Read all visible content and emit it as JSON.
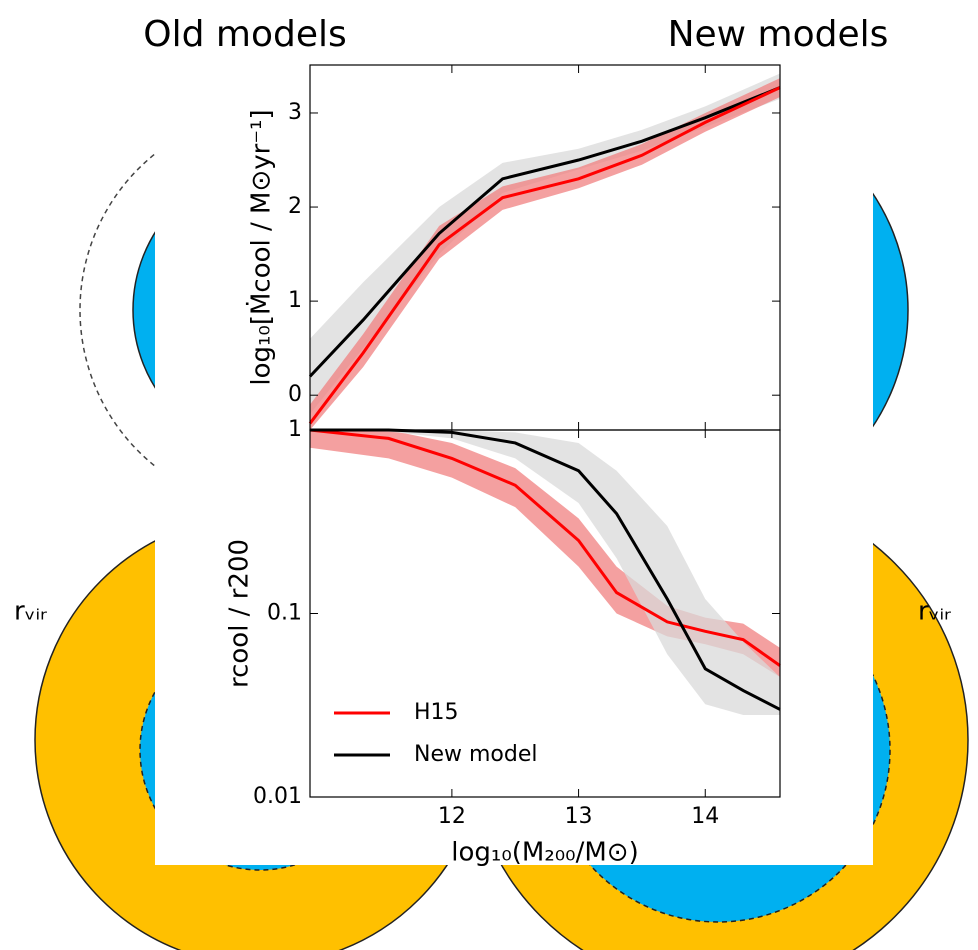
{
  "header": {
    "left": "Old models",
    "right": "New models"
  },
  "diagram": {
    "left_label": "rᵥᵢᵣ",
    "right_label": "rᵥᵢᵣ"
  },
  "chart_data": [
    {
      "type": "line",
      "y_label": "log₁₀[Ṁcool / M⊙yr⁻¹]",
      "x": [
        10.88,
        11.3,
        11.9,
        12.4,
        13,
        13.5,
        14,
        14.59
      ],
      "xlim": [
        10.88,
        14.59
      ],
      "xticks": [
        12,
        13,
        14
      ],
      "ylim": [
        -0.37,
        3.51
      ],
      "yticks": [
        0,
        1,
        2,
        3
      ],
      "series": [
        {
          "color": "#000000",
          "band_color": "#d9d9d9",
          "values": [
            0.2,
            0.8,
            1.72,
            2.3,
            2.5,
            2.7,
            2.95,
            3.27
          ],
          "lower": [
            -0.2,
            0.5,
            1.5,
            2.15,
            2.4,
            2.6,
            2.85,
            3.15
          ],
          "upper": [
            0.6,
            1.2,
            2.0,
            2.47,
            2.62,
            2.82,
            3.07,
            3.42
          ]
        },
        {
          "color": "#ff0000",
          "band_color": "#f08080",
          "values": [
            -0.3,
            0.45,
            1.6,
            2.1,
            2.3,
            2.55,
            2.9,
            3.27
          ],
          "lower": [
            -0.37,
            0.3,
            1.45,
            1.97,
            2.2,
            2.45,
            2.8,
            3.17
          ],
          "upper": [
            -0.1,
            0.65,
            1.8,
            2.22,
            2.42,
            2.67,
            3.0,
            3.37
          ]
        }
      ]
    },
    {
      "type": "line",
      "y_label": "rcool / r200",
      "x_label": "log₁₀(M₂₀₀/M⊙)",
      "yscale": "log",
      "legend": "lower left",
      "x": [
        10.88,
        11.5,
        12,
        12.5,
        13,
        13.3,
        13.7,
        14,
        14.3,
        14.59
      ],
      "xlim": [
        10.88,
        14.59
      ],
      "xticks": [
        12,
        13,
        14
      ],
      "ylim": [
        0.01,
        1
      ],
      "yticks": [
        0.01,
        0.1,
        1
      ],
      "series": [
        {
          "name": "H15",
          "color": "#ff0000",
          "band_color": "#f08080",
          "values": [
            1,
            0.9,
            0.7,
            0.5,
            0.25,
            0.13,
            0.09,
            0.08,
            0.072,
            0.052
          ],
          "lower": [
            0.8,
            0.7,
            0.55,
            0.38,
            0.18,
            0.1,
            0.075,
            0.068,
            0.06,
            0.045
          ],
          "upper": [
            1,
            1,
            0.85,
            0.62,
            0.33,
            0.18,
            0.11,
            0.095,
            0.088,
            0.065
          ]
        },
        {
          "name": "New model",
          "color": "#000000",
          "band_color": "#d9d9d9",
          "values": [
            1,
            1,
            0.97,
            0.85,
            0.6,
            0.35,
            0.12,
            0.05,
            0.038,
            0.03
          ],
          "lower": [
            1,
            0.98,
            0.9,
            0.7,
            0.4,
            0.2,
            0.06,
            0.032,
            0.028,
            0.028
          ],
          "upper": [
            1,
            1,
            1,
            0.97,
            0.85,
            0.6,
            0.3,
            0.12,
            0.07,
            0.045
          ]
        }
      ]
    }
  ]
}
